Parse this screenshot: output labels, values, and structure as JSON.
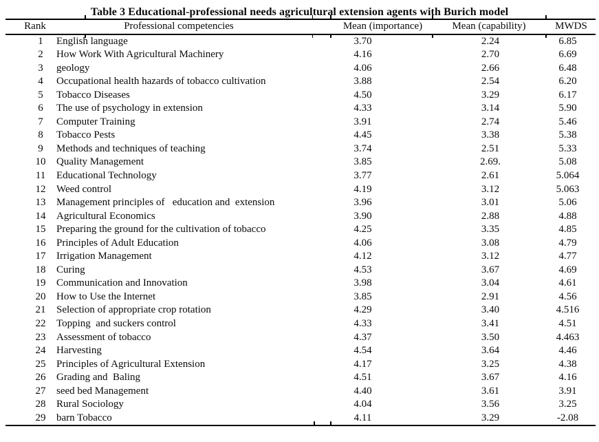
{
  "title": "Table 3 Educational-professional needs agricultural extension agents with Burich model",
  "table": {
    "columns": [
      "Rank",
      "Professional competencies",
      "Mean (importance)",
      "Mean (capability)",
      "MWDS"
    ],
    "rows": [
      [
        "1",
        "English language",
        "3.70",
        "2.24",
        "6.85"
      ],
      [
        "2",
        "How Work With Agricultural Machinery",
        "4.16",
        "2.70",
        "6.69"
      ],
      [
        "3",
        "geology",
        "4.06",
        "2.66",
        "6.48"
      ],
      [
        "4",
        "Occupational health hazards of tobacco cultivation",
        "3.88",
        "2.54",
        "6.20"
      ],
      [
        "5",
        "Tobacco Diseases",
        "4.50",
        "3.29",
        "6.17"
      ],
      [
        "6",
        "The use of psychology in extension",
        "4.33",
        "3.14",
        "5.90"
      ],
      [
        "7",
        "Computer Training",
        "3.91",
        "2.74",
        "5.46"
      ],
      [
        "8",
        "Tobacco Pests",
        "4.45",
        "3.38",
        "5.38"
      ],
      [
        "9",
        "Methods and techniques of teaching",
        "3.74",
        "2.51",
        "5.33"
      ],
      [
        "10",
        "Quality Management",
        "3.85",
        "2.69.",
        "5.08"
      ],
      [
        "11",
        "Educational Technology",
        "3.77",
        "2.61",
        "5.064"
      ],
      [
        "12",
        "Weed control",
        "4.19",
        "3.12",
        "5.063"
      ],
      [
        "13",
        "Management principles of   education and  extension",
        "3.96",
        "3.01",
        "5.06"
      ],
      [
        "14",
        "Agricultural Economics",
        "3.90",
        "2.88",
        "4.88"
      ],
      [
        "15",
        "Preparing the ground for the cultivation of tobacco",
        "4.25",
        "3.35",
        "4.85"
      ],
      [
        "16",
        "Principles of Adult Education",
        "4.06",
        "3.08",
        "4.79"
      ],
      [
        "17",
        "Irrigation Management",
        "4.12",
        "3.12",
        "4.77"
      ],
      [
        "18",
        "Curing",
        "4.53",
        "3.67",
        "4.69"
      ],
      [
        "19",
        "Communication and Innovation",
        "3.98",
        "3.04",
        "4.61"
      ],
      [
        "20",
        "How to Use the Internet",
        "3.85",
        "2.91",
        "4.56"
      ],
      [
        "21",
        "Selection of appropriate crop rotation",
        "4.29",
        "3.40",
        "4.516"
      ],
      [
        "22",
        "Topping  and suckers control",
        "4.33",
        "3.41",
        "4.51"
      ],
      [
        "23",
        "Assessment of tobacco",
        "4.37",
        "3.50",
        "4.463"
      ],
      [
        "24",
        "Harvesting",
        "4.54",
        "3.64",
        "4.46"
      ],
      [
        "25",
        "Principles of Agricultural Extension",
        "4.17",
        "3.25",
        "4.38"
      ],
      [
        "26",
        "Grading and  Baling",
        "4.51",
        "3.67",
        "4.16"
      ],
      [
        "27",
        "seed bed Management",
        "4.40",
        "3.61",
        "3.91"
      ],
      [
        "28",
        "Rural Sociology",
        "4.04",
        "3.56",
        "3.25"
      ],
      [
        "29",
        "barn Tobacco",
        "4.11",
        "3.29",
        "-2.08"
      ]
    ],
    "colors": {
      "text": "#0a0a0a",
      "rule": "#000000",
      "background": "#ffffff"
    }
  }
}
